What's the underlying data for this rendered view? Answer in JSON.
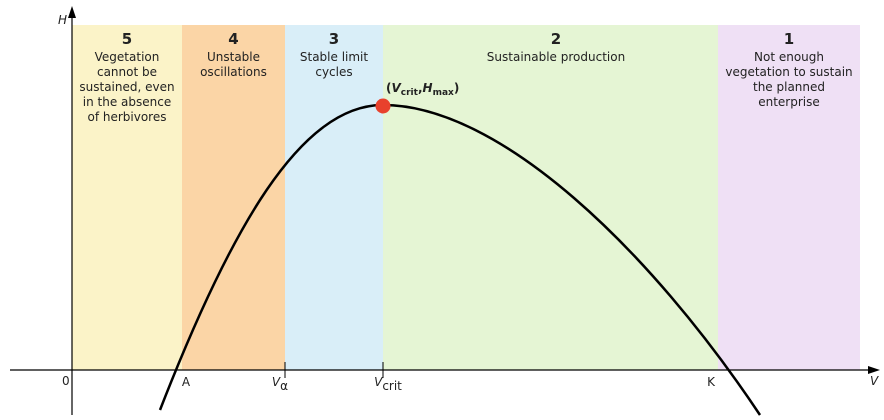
{
  "axes": {
    "y_label": "H",
    "x_label": "V",
    "origin": "0"
  },
  "zones": [
    {
      "number": "5",
      "lines": [
        "Vegetation",
        "cannot be",
        "sustained, even",
        "in the absence",
        "of herbivores"
      ]
    },
    {
      "number": "4",
      "lines": [
        "Unstable",
        "oscillations"
      ]
    },
    {
      "number": "3",
      "lines": [
        "Stable limit",
        "cycles"
      ]
    },
    {
      "number": "2",
      "lines": [
        "Sustainable production"
      ]
    },
    {
      "number": "1",
      "lines": [
        "Not enough",
        "vegetation to sustain",
        "the planned",
        "enterprise"
      ]
    }
  ],
  "x_ticks": [
    {
      "main": "A"
    },
    {
      "main": "V",
      "sub": "α"
    },
    {
      "main": "V",
      "sub": "crit"
    },
    {
      "main": "K"
    }
  ],
  "point_label": {
    "open": "(",
    "v": "V",
    "v_sub": "crit",
    "sep": ",",
    "h": "H",
    "h_sub": "max",
    "close": ")"
  }
}
